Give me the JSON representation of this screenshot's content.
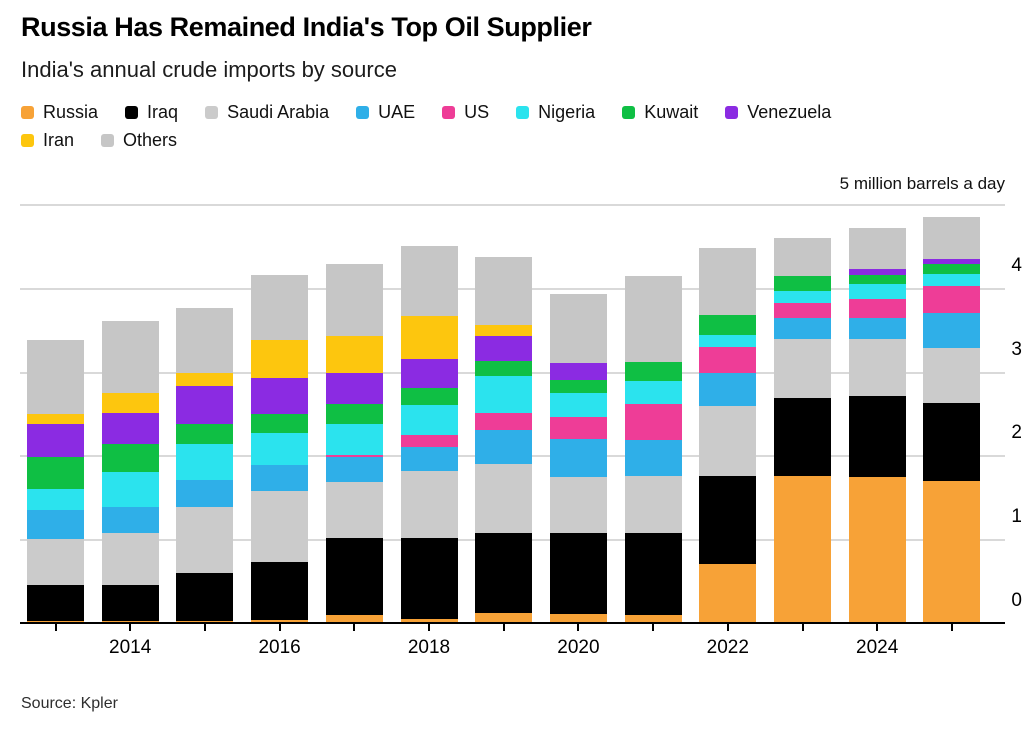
{
  "header": {
    "title": "Russia Has Remained India's Top Oil Supplier",
    "subtitle": "India's annual crude imports by source"
  },
  "unit_label": "5 million barrels a day",
  "source_label": "Source: Kpler",
  "legend": {
    "row_break_after": 8
  },
  "chart_data": {
    "type": "bar",
    "stacked": true,
    "title": "Russia Has Remained India's Top Oil Supplier",
    "subtitle": "India's annual crude imports by source",
    "unit": "million barrels a day",
    "categories": [
      2013,
      2014,
      2015,
      2016,
      2017,
      2018,
      2019,
      2020,
      2021,
      2022,
      2023,
      2024,
      2025
    ],
    "series": [
      {
        "name": "Russia",
        "color": "#F7A237",
        "values": [
          0.02,
          0.02,
          0.03,
          0.04,
          0.1,
          0.05,
          0.12,
          0.11,
          0.09,
          0.71,
          1.76,
          1.74,
          1.7
        ]
      },
      {
        "name": "Iraq",
        "color": "#000000",
        "values": [
          0.43,
          0.43,
          0.57,
          0.69,
          0.91,
          0.96,
          0.95,
          0.96,
          0.98,
          1.05,
          0.93,
          0.97,
          0.93
        ]
      },
      {
        "name": "Saudi Arabia",
        "color": "#CBCBCB",
        "values": [
          0.55,
          0.63,
          0.78,
          0.85,
          0.67,
          0.81,
          0.83,
          0.67,
          0.69,
          0.83,
          0.7,
          0.68,
          0.65
        ]
      },
      {
        "name": "UAE",
        "color": "#2FAFE8",
        "values": [
          0.35,
          0.3,
          0.33,
          0.31,
          0.3,
          0.28,
          0.4,
          0.46,
          0.42,
          0.39,
          0.25,
          0.25,
          0.42
        ]
      },
      {
        "name": "US",
        "color": "#EE3D97",
        "values": [
          0.0,
          0.0,
          0.0,
          0.0,
          0.03,
          0.14,
          0.21,
          0.26,
          0.44,
          0.32,
          0.18,
          0.23,
          0.32
        ]
      },
      {
        "name": "Nigeria",
        "color": "#2BE3EE",
        "values": [
          0.25,
          0.42,
          0.43,
          0.38,
          0.37,
          0.36,
          0.44,
          0.28,
          0.27,
          0.14,
          0.14,
          0.18,
          0.15
        ]
      },
      {
        "name": "Kuwait",
        "color": "#0FBF44",
        "values": [
          0.38,
          0.34,
          0.24,
          0.22,
          0.23,
          0.21,
          0.18,
          0.16,
          0.22,
          0.24,
          0.18,
          0.1,
          0.12
        ]
      },
      {
        "name": "Venezuela",
        "color": "#8B2BE2",
        "values": [
          0.39,
          0.37,
          0.45,
          0.44,
          0.37,
          0.34,
          0.3,
          0.2,
          0.0,
          0.0,
          0.0,
          0.07,
          0.06
        ]
      },
      {
        "name": "Iran",
        "color": "#FDC60E",
        "values": [
          0.13,
          0.23,
          0.15,
          0.45,
          0.44,
          0.52,
          0.13,
          0.0,
          0.0,
          0.0,
          0.0,
          0.0,
          0.0
        ]
      },
      {
        "name": "Others",
        "color": "#C6C6C6",
        "values": [
          0.88,
          0.87,
          0.78,
          0.77,
          0.87,
          0.83,
          0.81,
          0.83,
          1.03,
          0.8,
          0.46,
          0.5,
          0.5
        ]
      }
    ],
    "ylim": [
      0,
      5
    ],
    "yticks": [
      0,
      1,
      2,
      3,
      4
    ],
    "xtick_labels": [
      "2014",
      "2016",
      "2018",
      "2020",
      "2022",
      "2024"
    ],
    "grid": true,
    "legend_position": "top"
  }
}
